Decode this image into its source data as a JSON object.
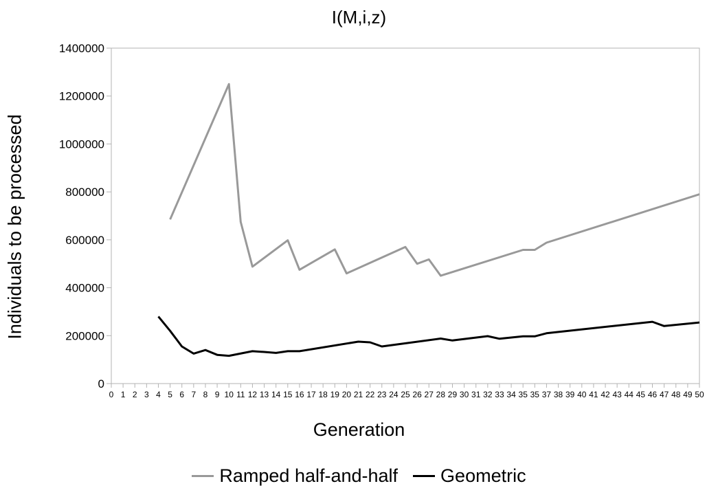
{
  "chart_data": {
    "type": "line",
    "title": "I(M,i,z)",
    "xlabel": "Generation",
    "ylabel": "Individuals to be processed",
    "x_categories": [
      "0",
      "1",
      "2",
      "3",
      "4",
      "5",
      "6",
      "7",
      "8",
      "9",
      "10",
      "11",
      "12",
      "13",
      "14",
      "15",
      "16",
      "17",
      "18",
      "19",
      "20",
      "21",
      "22",
      "23",
      "24",
      "25",
      "26",
      "27",
      "28",
      "29",
      "30",
      "31",
      "32",
      "33",
      "34",
      "35",
      "35",
      "37",
      "38",
      "39",
      "40",
      "41",
      "42",
      "43",
      "44",
      "45",
      "46",
      "47",
      "48",
      "49",
      "50"
    ],
    "ylim": [
      0,
      1400000
    ],
    "yticks": [
      "0",
      "200000",
      "400000",
      "600000",
      "800000",
      "1000000",
      "1200000",
      "1400000"
    ],
    "grid": false,
    "legend_position": "bottom",
    "series": [
      {
        "name": "Ramped half-and-half",
        "color": "#999999",
        "points": [
          [
            5,
            685000
          ],
          [
            10,
            1250000
          ],
          [
            11,
            675000
          ],
          [
            12,
            488000
          ],
          [
            15,
            598000
          ],
          [
            16,
            475000
          ],
          [
            19,
            560000
          ],
          [
            20,
            460000
          ],
          [
            25,
            570000
          ],
          [
            26,
            500000
          ],
          [
            27,
            518000
          ],
          [
            28,
            450000
          ],
          [
            35,
            558000
          ],
          [
            36,
            558000
          ],
          [
            37,
            588000
          ],
          [
            50,
            790000
          ]
        ]
      },
      {
        "name": "Geometric",
        "color": "#000000",
        "points": [
          [
            4,
            280000
          ],
          [
            5,
            220000
          ],
          [
            6,
            155000
          ],
          [
            7,
            125000
          ],
          [
            8,
            140000
          ],
          [
            9,
            120000
          ],
          [
            10,
            116000
          ],
          [
            12,
            135000
          ],
          [
            13,
            132000
          ],
          [
            14,
            128000
          ],
          [
            15,
            135000
          ],
          [
            16,
            135000
          ],
          [
            21,
            175000
          ],
          [
            22,
            172000
          ],
          [
            23,
            155000
          ],
          [
            28,
            188000
          ],
          [
            29,
            180000
          ],
          [
            32,
            198000
          ],
          [
            33,
            187000
          ],
          [
            35,
            197000
          ],
          [
            36,
            197000
          ],
          [
            37,
            210000
          ],
          [
            46,
            258000
          ],
          [
            47,
            240000
          ],
          [
            50,
            255000
          ]
        ]
      }
    ]
  }
}
